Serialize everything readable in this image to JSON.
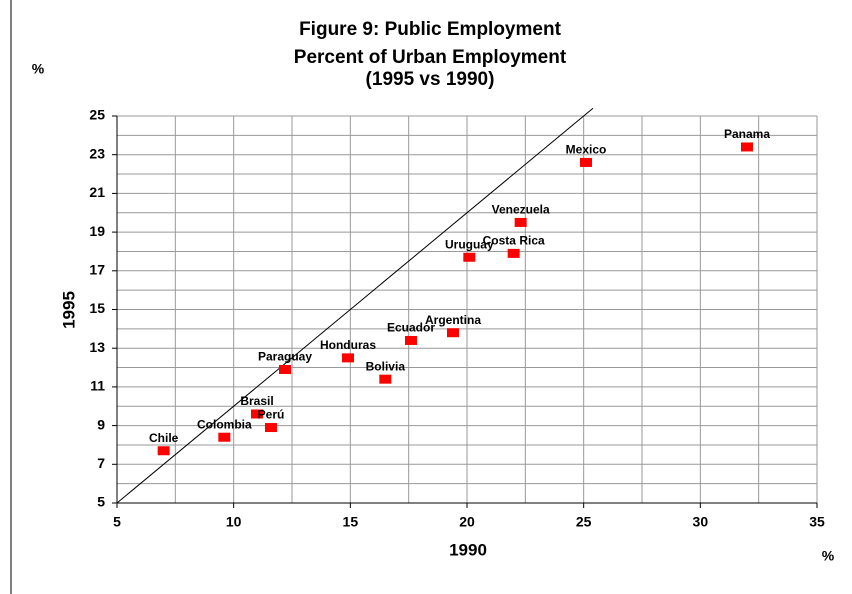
{
  "chart_data": {
    "type": "scatter",
    "title": [
      "Figure 9: Public Employment",
      "Percent of Urban Employment",
      "(1995 vs 1990)"
    ],
    "y_unit": "%",
    "x_unit": "%",
    "xlabel": "1990",
    "ylabel": "1995",
    "labels": [
      "Chile",
      "Colombia",
      "Brasil",
      "Perú",
      "Paraguay",
      "Honduras",
      "Bolivia",
      "Ecuador",
      "Argentina",
      "Uruguay",
      "Costa Rica",
      "Venezuela",
      "Mexico",
      "Panama"
    ],
    "x": [
      7.0,
      9.6,
      11.0,
      11.6,
      12.2,
      14.9,
      16.5,
      17.6,
      19.4,
      20.1,
      22.0,
      22.3,
      25.1,
      32.0
    ],
    "y": [
      7.7,
      8.4,
      9.6,
      8.9,
      11.9,
      12.5,
      11.4,
      13.4,
      13.8,
      17.7,
      17.9,
      19.5,
      22.6,
      23.4
    ],
    "color": "#ff0000",
    "reference_line": {
      "x": [
        5,
        25.4
      ],
      "y": [
        5,
        25.4
      ]
    },
    "xlim": [
      5,
      35
    ],
    "ylim": [
      5,
      25
    ],
    "xticks": [
      5,
      10,
      15,
      20,
      25,
      30,
      35
    ],
    "yticks": [
      5,
      7,
      9,
      11,
      13,
      15,
      17,
      19,
      21,
      23,
      25
    ],
    "xgrid": [
      7.5,
      12.5,
      17.5,
      22.5,
      27.5,
      32.5
    ],
    "ygrid": [
      6,
      8,
      10,
      12,
      14,
      16,
      18,
      20,
      22,
      24
    ],
    "grid": true
  }
}
